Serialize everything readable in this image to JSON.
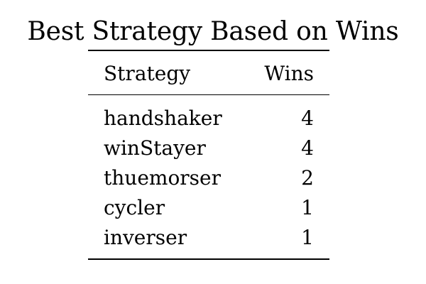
{
  "table": {
    "title": "Best Strategy Based on Wins",
    "headers": {
      "strategy": "Strategy",
      "wins": "Wins"
    },
    "rows": [
      {
        "strategy": "handshaker",
        "wins": "4"
      },
      {
        "strategy": "winStayer",
        "wins": "4"
      },
      {
        "strategy": "thuemorser",
        "wins": "2"
      },
      {
        "strategy": "cycler",
        "wins": "1"
      },
      {
        "strategy": "inverser",
        "wins": "1"
      }
    ]
  },
  "chart_data": {
    "type": "table",
    "title": "Best Strategy Based on Wins",
    "columns": [
      "Strategy",
      "Wins"
    ],
    "rows": [
      [
        "handshaker",
        4
      ],
      [
        "winStayer",
        4
      ],
      [
        "thuemorser",
        2
      ],
      [
        "cycler",
        1
      ],
      [
        "inverser",
        1
      ]
    ]
  }
}
